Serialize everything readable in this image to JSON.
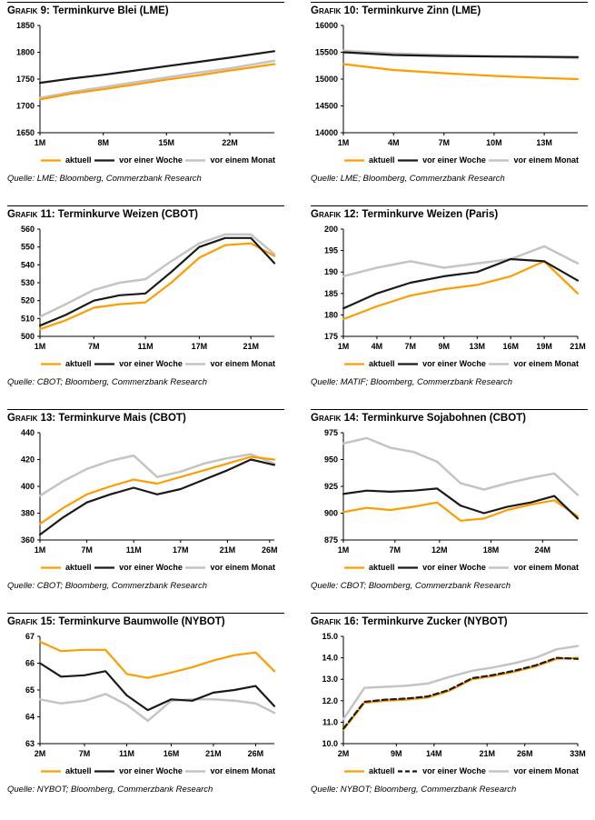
{
  "legend_labels": [
    "aktuell",
    "vor einer Woche",
    "vor einem Monat"
  ],
  "colors": {
    "aktuell": "#FF9C00",
    "week": "#1A1A1A",
    "month": "#C4C4C4"
  },
  "chart_data": [
    {
      "id": "grafik-9",
      "type": "line",
      "label": "Grafik 9:",
      "title": "Terminkurve Blei (LME)",
      "source": "Quelle: LME; Bloomberg, Commerzbank Research",
      "ylim": [
        1650,
        1850
      ],
      "yticks": [
        "1650",
        "1700",
        "1750",
        "1800",
        "1850"
      ],
      "xticks": [
        {
          "label": "1M",
          "pos": 0
        },
        {
          "label": "8M",
          "pos": 0.27
        },
        {
          "label": "15M",
          "pos": 0.54
        },
        {
          "label": "22M",
          "pos": 0.81
        }
      ],
      "series": [
        {
          "name": "aktuell",
          "color": "#FF9C00",
          "dash": false,
          "x": [
            0,
            0.135,
            0.27,
            0.405,
            0.54,
            0.675,
            0.81,
            1.0
          ],
          "values": [
            1712,
            1723,
            1731,
            1740,
            1749,
            1757,
            1766,
            1778
          ]
        },
        {
          "name": "vor einer Woche",
          "color": "#1A1A1A",
          "dash": false,
          "x": [
            0,
            0.135,
            0.27,
            0.405,
            0.54,
            0.675,
            0.81,
            1.0
          ],
          "values": [
            1743,
            1751,
            1758,
            1766,
            1774,
            1782,
            1790,
            1802
          ]
        },
        {
          "name": "vor einem Monat",
          "color": "#C4C4C4",
          "dash": false,
          "x": [
            0,
            0.135,
            0.27,
            0.405,
            0.54,
            0.675,
            0.81,
            1.0
          ],
          "values": [
            1715,
            1726,
            1735,
            1744,
            1753,
            1762,
            1770,
            1784
          ]
        }
      ]
    },
    {
      "id": "grafik-10",
      "type": "line",
      "label": "Grafik 10:",
      "title": "Terminkurve Zinn (LME)",
      "source": "Quelle: LME; Bloomberg, Commerzbank Research",
      "ylim": [
        14000,
        16000
      ],
      "yticks": [
        "14000",
        "14500",
        "15000",
        "15500",
        "16000"
      ],
      "xticks": [
        {
          "label": "1M",
          "pos": 0
        },
        {
          "label": "4M",
          "pos": 0.214
        },
        {
          "label": "7M",
          "pos": 0.429
        },
        {
          "label": "10M",
          "pos": 0.643
        },
        {
          "label": "13M",
          "pos": 0.857
        }
      ],
      "series": [
        {
          "name": "aktuell",
          "color": "#FF9C00",
          "dash": false,
          "x": [
            0,
            0.214,
            0.429,
            0.643,
            0.857,
            1.0
          ],
          "values": [
            15280,
            15170,
            15110,
            15060,
            15020,
            15000
          ]
        },
        {
          "name": "vor einer Woche",
          "color": "#1A1A1A",
          "dash": false,
          "x": [
            0,
            0.214,
            0.429,
            0.643,
            0.857,
            1.0
          ],
          "values": [
            15500,
            15450,
            15430,
            15420,
            15415,
            15410
          ]
        },
        {
          "name": "vor einem Monat",
          "color": "#C4C4C4",
          "dash": false,
          "x": [
            0,
            0.214,
            0.429,
            0.643,
            0.857,
            1.0
          ],
          "values": [
            15530,
            15480,
            15450,
            15430,
            15410,
            15390
          ]
        }
      ]
    },
    {
      "id": "grafik-11",
      "type": "line",
      "label": "Grafik 11:",
      "title": "Terminkurve Weizen (CBOT)",
      "source": "Quelle: CBOT; Bloomberg, Commerzbank Research",
      "ylim": [
        500,
        560
      ],
      "yticks": [
        "500",
        "510",
        "520",
        "530",
        "540",
        "550",
        "560"
      ],
      "xticks": [
        {
          "label": "1M",
          "pos": 0
        },
        {
          "label": "7M",
          "pos": 0.23
        },
        {
          "label": "11M",
          "pos": 0.45
        },
        {
          "label": "17M",
          "pos": 0.68
        },
        {
          "label": "21M",
          "pos": 0.9
        }
      ],
      "series": [
        {
          "name": "aktuell",
          "color": "#FF9C00",
          "dash": false,
          "x": [
            0,
            0.11,
            0.23,
            0.34,
            0.45,
            0.56,
            0.68,
            0.79,
            0.9,
            1.0
          ],
          "values": [
            504,
            509,
            516,
            518,
            519,
            530,
            544,
            551,
            552,
            545
          ]
        },
        {
          "name": "vor einer Woche",
          "color": "#1A1A1A",
          "dash": false,
          "x": [
            0,
            0.11,
            0.23,
            0.34,
            0.45,
            0.56,
            0.68,
            0.79,
            0.9,
            1.0
          ],
          "values": [
            506,
            512,
            520,
            523,
            524,
            536,
            550,
            555,
            555,
            541
          ]
        },
        {
          "name": "vor einem Monat",
          "color": "#C4C4C4",
          "dash": false,
          "x": [
            0,
            0.11,
            0.23,
            0.34,
            0.45,
            0.56,
            0.68,
            0.79,
            0.9,
            1.0
          ],
          "values": [
            511,
            518,
            526,
            530,
            532,
            542,
            552,
            557,
            557,
            546
          ]
        }
      ]
    },
    {
      "id": "grafik-12",
      "type": "line",
      "label": "Grafik 12:",
      "title": "Terminkurve Weizen (Paris)",
      "source": "Quelle: MATIF; Bloomberg, Commerzbank Research",
      "ylim": [
        175,
        200
      ],
      "yticks": [
        "175",
        "180",
        "185",
        "190",
        "195",
        "200"
      ],
      "xticks": [
        {
          "label": "1M",
          "pos": 0
        },
        {
          "label": "4M",
          "pos": 0.143
        },
        {
          "label": "7M",
          "pos": 0.286
        },
        {
          "label": "9M",
          "pos": 0.429
        },
        {
          "label": "13M",
          "pos": 0.571
        },
        {
          "label": "16M",
          "pos": 0.714
        },
        {
          "label": "19M",
          "pos": 0.857
        },
        {
          "label": "21M",
          "pos": 1.0
        }
      ],
      "series": [
        {
          "name": "aktuell",
          "color": "#FF9C00",
          "dash": false,
          "x": [
            0,
            0.143,
            0.286,
            0.429,
            0.571,
            0.714,
            0.857,
            1.0
          ],
          "values": [
            179,
            182,
            184.5,
            186,
            187,
            189,
            192.5,
            185
          ]
        },
        {
          "name": "vor einer Woche",
          "color": "#1A1A1A",
          "dash": false,
          "x": [
            0,
            0.143,
            0.286,
            0.429,
            0.571,
            0.714,
            0.857,
            1.0
          ],
          "values": [
            181.5,
            185,
            187.5,
            189,
            190,
            193,
            192.5,
            188
          ]
        },
        {
          "name": "vor einem Monat",
          "color": "#C4C4C4",
          "dash": false,
          "x": [
            0,
            0.143,
            0.286,
            0.429,
            0.571,
            0.714,
            0.857,
            1.0
          ],
          "values": [
            189,
            191,
            192.5,
            191,
            192,
            193,
            196,
            192
          ]
        }
      ]
    },
    {
      "id": "grafik-13",
      "type": "line",
      "label": "Grafik 13:",
      "title": "Terminkurve Mais (CBOT)",
      "source": "Quelle: CBOT; Bloomberg, Commerzbank Research",
      "ylim": [
        360,
        440
      ],
      "yticks": [
        "360",
        "380",
        "400",
        "420",
        "440"
      ],
      "xticks": [
        {
          "label": "1M",
          "pos": 0
        },
        {
          "label": "7M",
          "pos": 0.2
        },
        {
          "label": "11M",
          "pos": 0.4
        },
        {
          "label": "17M",
          "pos": 0.6
        },
        {
          "label": "21M",
          "pos": 0.8
        },
        {
          "label": "26M",
          "pos": 0.98
        }
      ],
      "series": [
        {
          "name": "aktuell",
          "color": "#FF9C00",
          "dash": false,
          "x": [
            0,
            0.1,
            0.2,
            0.3,
            0.4,
            0.5,
            0.6,
            0.7,
            0.8,
            0.9,
            1.0
          ],
          "values": [
            372,
            384,
            394,
            400,
            405,
            402,
            407,
            412,
            417,
            422,
            420
          ]
        },
        {
          "name": "vor einer Woche",
          "color": "#1A1A1A",
          "dash": false,
          "x": [
            0,
            0.1,
            0.2,
            0.3,
            0.4,
            0.5,
            0.6,
            0.7,
            0.8,
            0.9,
            1.0
          ],
          "values": [
            364,
            377,
            388,
            394,
            399,
            394,
            398,
            405,
            412,
            420,
            416
          ]
        },
        {
          "name": "vor einem Monat",
          "color": "#C4C4C4",
          "dash": false,
          "x": [
            0,
            0.1,
            0.2,
            0.3,
            0.4,
            0.5,
            0.6,
            0.7,
            0.8,
            0.9,
            1.0
          ],
          "values": [
            393,
            404,
            413,
            419,
            423,
            407,
            411,
            417,
            421,
            424,
            417
          ]
        }
      ]
    },
    {
      "id": "grafik-14",
      "type": "line",
      "label": "Grafik 14:",
      "title": "Terminkurve Sojabohnen (CBOT)",
      "source": "Quelle: CBOT; Bloomberg, Commerzbank Research",
      "ylim": [
        875,
        975
      ],
      "yticks": [
        "875",
        "900",
        "925",
        "950",
        "975"
      ],
      "xticks": [
        {
          "label": "1M",
          "pos": 0
        },
        {
          "label": "7M",
          "pos": 0.22
        },
        {
          "label": "12M",
          "pos": 0.41
        },
        {
          "label": "18M",
          "pos": 0.63
        },
        {
          "label": "24M",
          "pos": 0.85
        }
      ],
      "series": [
        {
          "name": "aktuell",
          "color": "#FF9C00",
          "dash": false,
          "x": [
            0,
            0.1,
            0.2,
            0.3,
            0.4,
            0.5,
            0.6,
            0.7,
            0.8,
            0.9,
            1.0
          ],
          "values": [
            901,
            905,
            903,
            906,
            910,
            893,
            895,
            903,
            908,
            912,
            897
          ]
        },
        {
          "name": "vor einer Woche",
          "color": "#1A1A1A",
          "dash": false,
          "x": [
            0,
            0.1,
            0.2,
            0.3,
            0.4,
            0.5,
            0.6,
            0.7,
            0.8,
            0.9,
            1.0
          ],
          "values": [
            918,
            921,
            920,
            921,
            923,
            907,
            900,
            906,
            910,
            916,
            895
          ]
        },
        {
          "name": "vor einem Monat",
          "color": "#C4C4C4",
          "dash": false,
          "x": [
            0,
            0.1,
            0.2,
            0.3,
            0.4,
            0.5,
            0.6,
            0.7,
            0.8,
            0.9,
            1.0
          ],
          "values": [
            965,
            970,
            961,
            957,
            948,
            928,
            922,
            928,
            933,
            937,
            917
          ]
        }
      ]
    },
    {
      "id": "grafik-15",
      "type": "line",
      "label": "Grafik 15:",
      "title": "Terminkurve Baumwolle (NYBOT)",
      "source": "Quelle: NYBOT; Bloomberg, Commerzbank Research",
      "ylim": [
        63,
        67
      ],
      "yticks": [
        "63",
        "64",
        "65",
        "66",
        "67"
      ],
      "xticks": [
        {
          "label": "2M",
          "pos": 0
        },
        {
          "label": "7M",
          "pos": 0.19
        },
        {
          "label": "11M",
          "pos": 0.37
        },
        {
          "label": "16M",
          "pos": 0.56
        },
        {
          "label": "21M",
          "pos": 0.74
        },
        {
          "label": "26M",
          "pos": 0.92
        }
      ],
      "series": [
        {
          "name": "aktuell",
          "color": "#FF9C00",
          "dash": false,
          "x": [
            0,
            0.09,
            0.19,
            0.28,
            0.37,
            0.46,
            0.56,
            0.65,
            0.74,
            0.83,
            0.92,
            1.0
          ],
          "values": [
            66.8,
            66.45,
            66.5,
            66.5,
            65.6,
            65.45,
            65.65,
            65.85,
            66.1,
            66.3,
            66.4,
            65.7
          ]
        },
        {
          "name": "vor einer Woche",
          "color": "#1A1A1A",
          "dash": false,
          "x": [
            0,
            0.09,
            0.19,
            0.28,
            0.37,
            0.46,
            0.56,
            0.65,
            0.74,
            0.83,
            0.92,
            1.0
          ],
          "values": [
            66.0,
            65.5,
            65.55,
            65.7,
            64.8,
            64.25,
            64.65,
            64.6,
            64.9,
            65.0,
            65.15,
            64.4
          ]
        },
        {
          "name": "vor einem Monat",
          "color": "#C4C4C4",
          "dash": false,
          "x": [
            0,
            0.09,
            0.19,
            0.28,
            0.37,
            0.46,
            0.56,
            0.65,
            0.74,
            0.83,
            0.92,
            1.0
          ],
          "values": [
            64.65,
            64.5,
            64.6,
            64.85,
            64.45,
            63.85,
            64.6,
            64.65,
            64.65,
            64.6,
            64.5,
            64.15
          ]
        }
      ]
    },
    {
      "id": "grafik-16",
      "type": "line",
      "label": "Grafik 16:",
      "title": "Terminkurve Zucker (NYBOT)",
      "source": "Quelle: NYBOT; Bloomberg, Commerzbank Research",
      "ylim": [
        10,
        15
      ],
      "yticks": [
        "10.0",
        "11.0",
        "12.0",
        "13.0",
        "14.0",
        "15.0"
      ],
      "xticks": [
        {
          "label": "2M",
          "pos": 0
        },
        {
          "label": "9M",
          "pos": 0.226
        },
        {
          "label": "14M",
          "pos": 0.387
        },
        {
          "label": "21M",
          "pos": 0.613
        },
        {
          "label": "26M",
          "pos": 0.774
        },
        {
          "label": "33M",
          "pos": 1.0
        }
      ],
      "series": [
        {
          "name": "aktuell",
          "color": "#FF9C00",
          "dash": false,
          "x": [
            0,
            0.09,
            0.18,
            0.27,
            0.36,
            0.45,
            0.55,
            0.64,
            0.73,
            0.82,
            0.91,
            1.0
          ],
          "values": [
            10.65,
            11.9,
            12.0,
            12.05,
            12.15,
            12.45,
            13.0,
            13.15,
            13.35,
            13.6,
            13.95,
            14.0
          ]
        },
        {
          "name": "vor einer Woche",
          "color": "#1A1A1A",
          "dash": true,
          "x": [
            0,
            0.09,
            0.18,
            0.27,
            0.36,
            0.45,
            0.55,
            0.64,
            0.73,
            0.82,
            0.91,
            1.0
          ],
          "values": [
            10.7,
            11.95,
            12.05,
            12.1,
            12.2,
            12.5,
            13.05,
            13.2,
            13.4,
            13.65,
            14.0,
            13.95
          ]
        },
        {
          "name": "vor einem Monat",
          "color": "#C4C4C4",
          "dash": false,
          "x": [
            0,
            0.09,
            0.18,
            0.27,
            0.36,
            0.45,
            0.55,
            0.64,
            0.73,
            0.82,
            0.91,
            1.0
          ],
          "values": [
            11.15,
            12.6,
            12.65,
            12.7,
            12.8,
            13.1,
            13.4,
            13.55,
            13.75,
            14.0,
            14.4,
            14.55
          ]
        }
      ]
    }
  ]
}
